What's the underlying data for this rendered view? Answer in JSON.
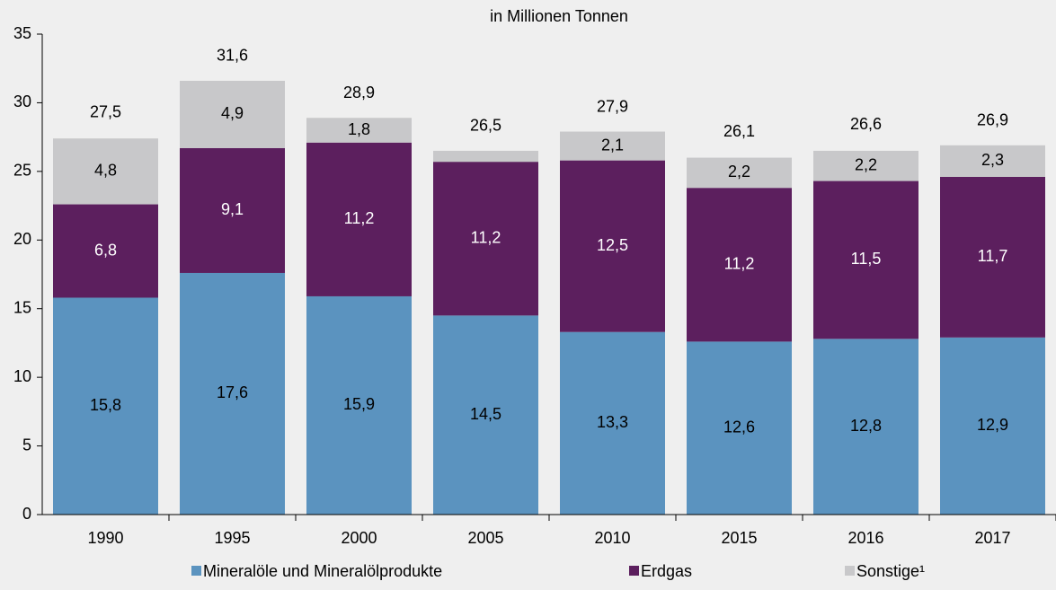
{
  "chart_data": {
    "type": "stacked_bar",
    "subtitle": "in Millionen Tonnen",
    "categories": [
      "1990",
      "1995",
      "2000",
      "2005",
      "2010",
      "2015",
      "2016",
      "2017"
    ],
    "series": [
      {
        "name": "Mineralöle und Mineralölprodukte",
        "color": "#5b93bf",
        "label_color": "#000000",
        "values": [
          15.8,
          17.6,
          15.9,
          14.5,
          13.3,
          12.6,
          12.8,
          12.9
        ],
        "value_labels": [
          "15,8",
          "17,6",
          "15,9",
          "14,5",
          "13,3",
          "12,6",
          "12,8",
          "12,9"
        ]
      },
      {
        "name": "Erdgas",
        "color": "#5c1f5e",
        "label_color": "#ffffff",
        "values": [
          6.8,
          9.1,
          11.2,
          11.2,
          12.5,
          11.2,
          11.5,
          11.7
        ],
        "value_labels": [
          "6,8",
          "9,1",
          "11,2",
          "11,2",
          "12,5",
          "11,2",
          "11,5",
          "11,7"
        ]
      },
      {
        "name": "Sonstige¹",
        "color": "#c8c8ca",
        "label_color": "#000000",
        "values": [
          4.8,
          4.9,
          1.8,
          0.8,
          2.1,
          2.2,
          2.2,
          2.3
        ],
        "value_labels": [
          "4,8",
          "4,9",
          "1,8",
          null,
          "2,1",
          "2,2",
          "2,2",
          "2,3"
        ]
      }
    ],
    "totals": [
      27.5,
      31.6,
      28.9,
      26.5,
      27.9,
      26.1,
      26.6,
      26.9
    ],
    "total_labels": [
      "27,5",
      "31,6",
      "28,9",
      "26,5",
      "27,9",
      "26,1",
      "26,6",
      "26,9"
    ],
    "ylim": [
      0,
      35
    ],
    "yticks": [
      0,
      5,
      10,
      15,
      20,
      25,
      30,
      35
    ]
  }
}
